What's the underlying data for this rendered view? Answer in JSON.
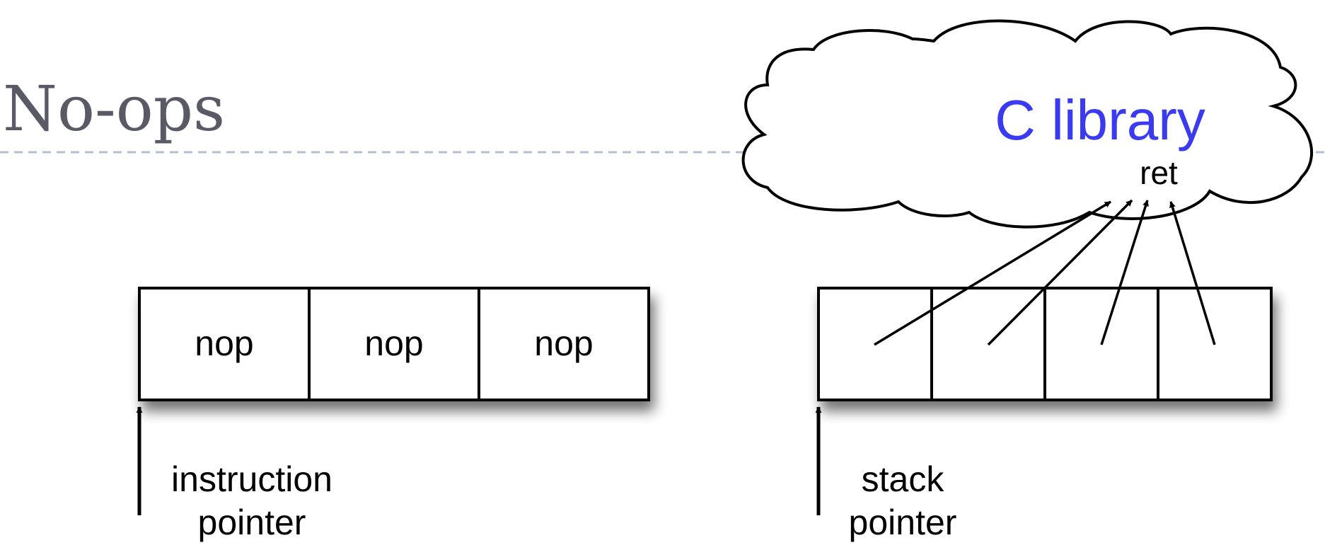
{
  "slide": {
    "title": "No-ops"
  },
  "instruction_array": {
    "cells": [
      "nop",
      "nop",
      "nop"
    ],
    "pointer_label_line1": "instruction",
    "pointer_label_line2": "pointer"
  },
  "stack_array": {
    "cell_count": 4,
    "pointer_label_line1": "stack",
    "pointer_label_line2": "pointer"
  },
  "library": {
    "title": "C library",
    "ret_label": "ret"
  },
  "colors": {
    "title": "#5a5a66",
    "divider": "#b5bfd3",
    "library_text": "#3a3af0",
    "stroke": "#000000"
  }
}
